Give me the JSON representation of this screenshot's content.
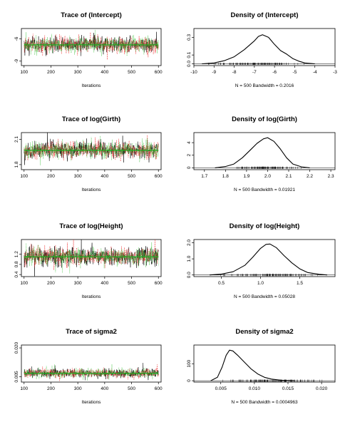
{
  "colors": {
    "chain1": "#000000",
    "chain2": "#ee3333",
    "chain3": "#22bb22",
    "trend": "#22aa22",
    "frame": "#000000"
  },
  "chart_data": [
    {
      "type": "line",
      "kind": "trace",
      "title": "Trace of (Intercept)",
      "xlabel": "Iterations",
      "xlim": [
        90,
        610
      ],
      "ylim": [
        -9.6,
        -4.6
      ],
      "xticks": [
        100,
        200,
        300,
        400,
        500,
        600
      ],
      "xtick_labels": [
        "100",
        "200",
        "300",
        "400",
        "500",
        "600"
      ],
      "yticks": [
        -9,
        -6
      ],
      "ytick_labels": [
        "-9",
        "-6"
      ],
      "chains": 3,
      "iterations": [
        100,
        600
      ],
      "center": -6.8,
      "spread": 0.55,
      "series_colors": [
        "#000000",
        "#ee3333",
        "#22bb22"
      ]
    },
    {
      "type": "line",
      "kind": "density",
      "title": "Density of (Intercept)",
      "xlabel": "N = 500   Bandwidth = 0.2016",
      "xlim": [
        -10,
        -3
      ],
      "ylim": [
        -0.02,
        0.4
      ],
      "xticks": [
        -10,
        -9,
        -8,
        -7,
        -6,
        -5,
        -4,
        -3
      ],
      "xtick_labels": [
        "-10",
        "-9",
        "-8",
        "-7",
        "-6",
        "-5",
        "-4",
        "-3"
      ],
      "yticks": [
        0.0,
        0.1,
        0.3
      ],
      "ytick_labels": [
        "0.0",
        "0.1",
        "0.3"
      ],
      "curve_x": [
        -9.6,
        -9.0,
        -8.5,
        -8.0,
        -7.5,
        -7.0,
        -6.8,
        -6.6,
        -6.3,
        -6.0,
        -5.7,
        -5.4,
        -5.1,
        -4.8,
        -4.5,
        -4.0
      ],
      "curve_y": [
        0.0,
        0.01,
        0.035,
        0.08,
        0.16,
        0.26,
        0.31,
        0.33,
        0.3,
        0.22,
        0.15,
        0.11,
        0.06,
        0.03,
        0.01,
        0.0
      ],
      "rug_range": [
        -9.6,
        -4.4
      ]
    },
    {
      "type": "line",
      "kind": "trace",
      "title": "Trace of log(Girth)",
      "xlabel": "Iterations",
      "xlim": [
        90,
        610
      ],
      "ylim": [
        1.74,
        2.18
      ],
      "xticks": [
        100,
        200,
        300,
        400,
        500,
        600
      ],
      "xtick_labels": [
        "100",
        "200",
        "300",
        "400",
        "500",
        "600"
      ],
      "yticks": [
        1.8,
        2.1
      ],
      "ytick_labels": [
        "1.8",
        "2.1"
      ],
      "chains": 3,
      "iterations": [
        100,
        600
      ],
      "center": 1.97,
      "spread": 0.05,
      "series_colors": [
        "#000000",
        "#ee3333",
        "#22bb22"
      ]
    },
    {
      "type": "line",
      "kind": "density",
      "title": "Density of log(Girth)",
      "xlabel": "N = 500   Bandwidth = 0.01921",
      "xlim": [
        1.65,
        2.32
      ],
      "ylim": [
        -0.3,
        5.6
      ],
      "xticks": [
        1.7,
        1.8,
        1.9,
        2.0,
        2.1,
        2.2,
        2.3
      ],
      "xtick_labels": [
        "1.7",
        "1.8",
        "1.9",
        "2.0",
        "2.1",
        "2.2",
        "2.3"
      ],
      "yticks": [
        0,
        2,
        4
      ],
      "ytick_labels": [
        "0",
        "2",
        "4"
      ],
      "curve_x": [
        1.75,
        1.8,
        1.84,
        1.88,
        1.92,
        1.95,
        1.98,
        2.0,
        2.03,
        2.06,
        2.09,
        2.12,
        2.16,
        2.2
      ],
      "curve_y": [
        0.0,
        0.2,
        0.6,
        1.6,
        2.9,
        3.9,
        4.6,
        4.8,
        4.2,
        3.0,
        1.6,
        0.6,
        0.15,
        0.0
      ],
      "rug_range": [
        1.8,
        2.17
      ]
    },
    {
      "type": "line",
      "kind": "trace",
      "title": "Trace of log(Height)",
      "xlabel": "Iterations",
      "xlim": [
        90,
        610
      ],
      "ylim": [
        0.32,
        1.78
      ],
      "xticks": [
        100,
        200,
        300,
        400,
        500,
        600
      ],
      "xtick_labels": [
        "100",
        "200",
        "300",
        "400",
        "500",
        "600"
      ],
      "yticks": [
        0.4,
        0.8,
        1.2
      ],
      "ytick_labels": [
        "0.4",
        "0.8",
        "1.2"
      ],
      "chains": 3,
      "iterations": [
        100,
        600
      ],
      "center": 1.1,
      "spread": 0.18,
      "series_colors": [
        "#000000",
        "#ee3333",
        "#22bb22"
      ]
    },
    {
      "type": "line",
      "kind": "density",
      "title": "Density of log(Height)",
      "xlabel": "N = 500   Bandwidth = 0.05028",
      "xlim": [
        0.15,
        1.95
      ],
      "ylim": [
        -0.1,
        2.2
      ],
      "xticks": [
        0.5,
        1.0,
        1.5
      ],
      "xtick_labels": [
        "0.5",
        "1.0",
        "1.5"
      ],
      "yticks": [
        0.0,
        1.0,
        2.0
      ],
      "ytick_labels": [
        "0.0",
        "1.0",
        "2.0"
      ],
      "curve_x": [
        0.35,
        0.5,
        0.65,
        0.8,
        0.9,
        1.0,
        1.07,
        1.12,
        1.2,
        1.3,
        1.4,
        1.5,
        1.6,
        1.75,
        1.85
      ],
      "curve_y": [
        0.0,
        0.05,
        0.2,
        0.6,
        1.1,
        1.65,
        1.9,
        1.92,
        1.7,
        1.2,
        0.75,
        0.38,
        0.15,
        0.04,
        0.0
      ],
      "rug_range": [
        0.45,
        1.75
      ]
    },
    {
      "type": "line",
      "kind": "trace",
      "title": "Trace of sigma2",
      "xlabel": "Iterations",
      "xlim": [
        90,
        610
      ],
      "ylim": [
        0.0022,
        0.0215
      ],
      "xticks": [
        100,
        200,
        300,
        400,
        500,
        600
      ],
      "xtick_labels": [
        "100",
        "200",
        "300",
        "400",
        "500",
        "600"
      ],
      "yticks": [
        0.005,
        0.02
      ],
      "ytick_labels": [
        "0.005",
        "0.020"
      ],
      "chains": 3,
      "iterations": [
        100,
        600
      ],
      "center": 0.0068,
      "spread": 0.0012,
      "series_colors": [
        "#000000",
        "#ee3333",
        "#22bb22"
      ]
    },
    {
      "type": "line",
      "kind": "density",
      "title": "Density of sigma2",
      "xlabel": "N = 500   Bandwidth = 0.0004963",
      "xlim": [
        0.001,
        0.022
      ],
      "ylim": [
        -8,
        210
      ],
      "xticks": [
        0.005,
        0.01,
        0.015,
        0.02
      ],
      "xtick_labels": [
        "0.005",
        "0.010",
        "0.015",
        "0.020"
      ],
      "yticks": [
        0,
        100
      ],
      "ytick_labels": [
        "0",
        "100"
      ],
      "curve_x": [
        0.0035,
        0.0045,
        0.0052,
        0.0058,
        0.0063,
        0.0068,
        0.0075,
        0.0085,
        0.0095,
        0.0105,
        0.0115,
        0.0125,
        0.014,
        0.016
      ],
      "curve_y": [
        0,
        20,
        80,
        150,
        180,
        175,
        150,
        110,
        70,
        40,
        20,
        10,
        3,
        0
      ],
      "rug_range": [
        0.004,
        0.021
      ]
    }
  ]
}
